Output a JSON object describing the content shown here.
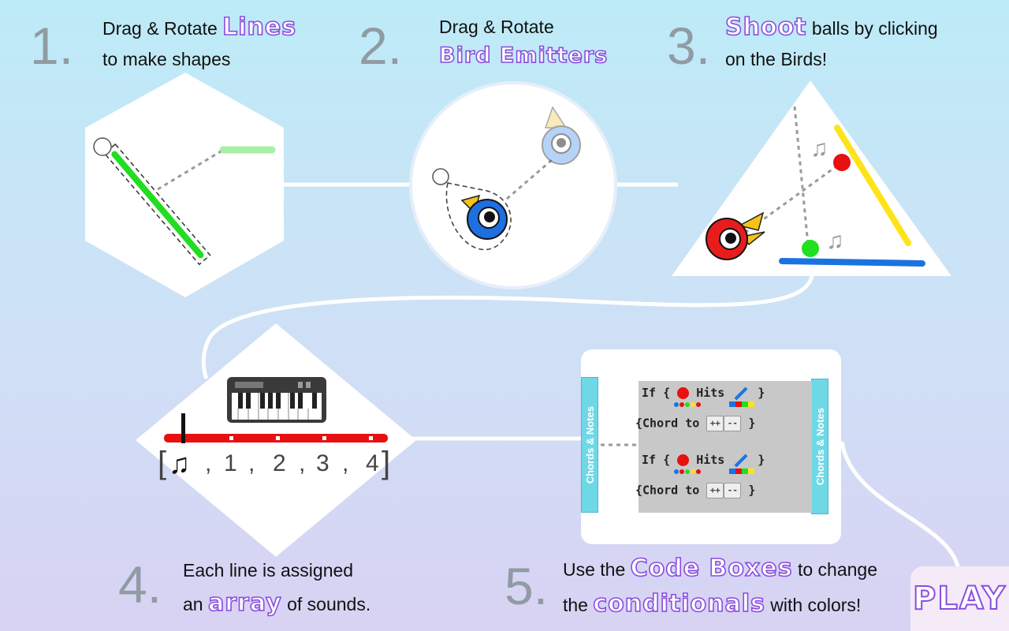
{
  "steps": [
    {
      "number": "1.",
      "line1_pre": "Drag & Rotate ",
      "line1_fancy": "Lines",
      "line2": "to make shapes"
    },
    {
      "number": "2.",
      "line1": "Drag & Rotate",
      "line2_fancy": "Bird Emitters"
    },
    {
      "number": "3.",
      "line1_fancy": "Shoot",
      "line1_post": " balls by clicking",
      "line2": "on the Birds!"
    },
    {
      "number": "4.",
      "line1": "Each line is assigned",
      "line2_pre": "an ",
      "line2_fancy": "array",
      "line2_post": " of sounds."
    },
    {
      "number": "5.",
      "line1_pre": "Use the ",
      "line1_fancy": "Code Boxes",
      "line1_post": " to change",
      "line2_pre": "the ",
      "line2_fancy": "conditionals",
      "line2_post": " with colors!"
    }
  ],
  "array": {
    "open": "[",
    "items": [
      "1",
      "2",
      "3",
      "4"
    ],
    "separator": ",",
    "close": "]",
    "note_symbol": "♫"
  },
  "code_boxes": {
    "tab_label": "Chords & Notes",
    "rows": [
      {
        "if_word": "If {",
        "hits_word": "Hits",
        "close": "}",
        "chord_text": "{Chord to",
        "btn_inc": "++",
        "btn_dec": "--",
        "chord_close": "}"
      },
      {
        "if_word": "If {",
        "hits_word": "Hits",
        "close": "}",
        "chord_text": "{Chord to",
        "btn_inc": "++",
        "btn_dec": "--",
        "chord_close": "}"
      }
    ]
  },
  "play_label": "PLAY",
  "colors": {
    "accent_purple": "#8a4de0",
    "line_green": "#22dd22",
    "line_yellow": "#ffe31a",
    "line_blue": "#1a74e0",
    "ball_red": "#e81010",
    "ball_green": "#20e020",
    "bird_blue": "#1e6fe0",
    "bird_red": "#e81c1c",
    "tab_cyan": "#6ed8e6"
  },
  "icons": [
    "music-note-icon",
    "piano-icon",
    "bird-emitter-icon"
  ]
}
